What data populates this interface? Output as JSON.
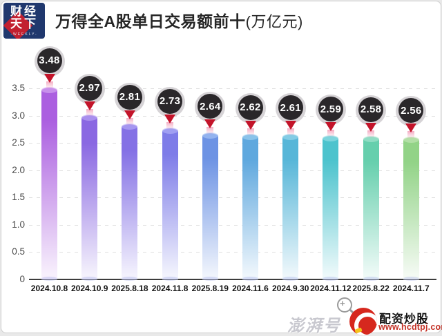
{
  "header": {
    "logo_line1": "财经",
    "logo_line2": "天下",
    "logo_weekly": "-WEEKLY-",
    "title": "万得全A股单日交易额前十",
    "title_unit": "(万亿元)"
  },
  "chart_data": {
    "type": "bar",
    "title": "万得全A股单日交易额前十(万亿元)",
    "categories": [
      "2024.10.8",
      "2024.10.9",
      "2025.8.18",
      "2024.11.8",
      "2025.8.19",
      "2024.11.6",
      "2024.9.30",
      "2024.11.12",
      "2025.8.22",
      "2024.11.7"
    ],
    "values": [
      3.48,
      2.97,
      2.81,
      2.73,
      2.64,
      2.62,
      2.61,
      2.59,
      2.58,
      2.56
    ],
    "value_labels": [
      "3.48",
      "2.97",
      "2.81",
      "2.73",
      "2.64",
      "2.62",
      "2.61",
      "2.59",
      "2.58",
      "2.56"
    ],
    "xlabel": "",
    "ylabel": "",
    "ylim": [
      0,
      3.5
    ],
    "ytick_values": [
      0,
      0.5,
      1.0,
      1.5,
      2.0,
      2.5,
      3.0,
      3.5
    ],
    "ytick_labels": [
      "0",
      "0.5",
      "1.0",
      "1.5",
      "2.0",
      "2.5",
      "3.0",
      "3.5"
    ],
    "grid": "horizontal-dashed",
    "legend": "none",
    "bar_colors": [
      "#ab5fe0",
      "#8a68e2",
      "#8471e5",
      "#7e7ce8",
      "#6d93e4",
      "#5fa8de",
      "#57b6d8",
      "#4dc3cd",
      "#66cfad",
      "#92d387"
    ],
    "bar_top_colors": [
      "#c78feb",
      "#a98fee",
      "#a596f0",
      "#a09ff2",
      "#93b3ef",
      "#8ac3ea",
      "#83cce5",
      "#7dd5dd",
      "#90ddc4",
      "#b2dfa6"
    ],
    "bar_fade_colors": [
      "#f7effc",
      "#f4f1fc",
      "#f3f1fd",
      "#f2f3fd",
      "#f0f4fc",
      "#eff6fc",
      "#eef7fb",
      "#edf9fa",
      "#effaf7",
      "#f4faf3"
    ],
    "marker_style": {
      "circle_color": "#2a272a",
      "halo_color": "#d6d3d6",
      "pin_color": "#c3142a",
      "text_color": "#ffffff"
    }
  },
  "watermark": {
    "faint_text": "澎湃号",
    "brand_text": "配资炒股",
    "brand_url": "www.hcdtpj.com",
    "brand_red": "#d6281e"
  }
}
